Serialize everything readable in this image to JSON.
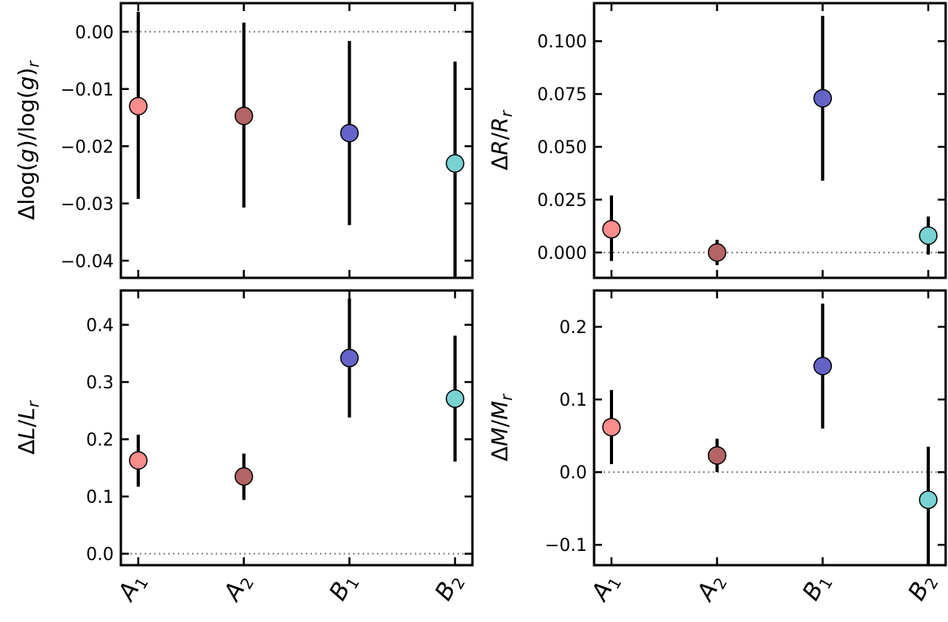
{
  "chart_data": {
    "type": "scatter",
    "categories": [
      {
        "main": "A",
        "sub": "1"
      },
      {
        "main": "A",
        "sub": "2"
      },
      {
        "main": "B",
        "sub": "1"
      },
      {
        "main": "B",
        "sub": "2"
      }
    ],
    "colors": [
      "#fa8c8c",
      "#b46464",
      "#6464c8",
      "#78d2d2"
    ],
    "reference_line": 0,
    "panels": [
      {
        "id": "logg",
        "ylabel": {
          "prefix": "Δlog(",
          "var": "g",
          "mid": ")/log(",
          "var2": "g",
          "end": ")",
          "sub": "r"
        },
        "yrange": [
          -0.043,
          0.005
        ],
        "ticks": [
          0.0,
          -0.01,
          -0.02,
          -0.03,
          -0.04
        ],
        "tick_labels": [
          "0.00",
          "−0.01",
          "−0.02",
          "−0.03",
          "−0.04"
        ],
        "values": [
          -0.013,
          -0.0147,
          -0.0177,
          -0.023
        ],
        "err_low": [
          -0.0292,
          -0.0307,
          -0.0338,
          -0.043
        ],
        "err_high": [
          0.0035,
          0.0016,
          -0.0016,
          -0.0052
        ]
      },
      {
        "id": "radius",
        "ylabel": {
          "prefix": "Δ",
          "var": "R",
          "mid": "/",
          "var2": "R",
          "end": "",
          "sub": "r"
        },
        "yrange": [
          -0.012,
          0.118
        ],
        "ticks": [
          0.0,
          0.025,
          0.05,
          0.075,
          0.1
        ],
        "tick_labels": [
          "0.000",
          "0.025",
          "0.050",
          "0.075",
          "0.100"
        ],
        "values": [
          0.011,
          0.0,
          0.073,
          0.008
        ],
        "err_low": [
          -0.004,
          -0.006,
          0.034,
          -0.001
        ],
        "err_high": [
          0.027,
          0.006,
          0.112,
          0.017
        ]
      },
      {
        "id": "luminosity",
        "ylabel": {
          "prefix": "Δ",
          "var": "L",
          "mid": "/",
          "var2": "L",
          "end": "",
          "sub": "r"
        },
        "yrange": [
          -0.02,
          0.46
        ],
        "ticks": [
          0.0,
          0.1,
          0.2,
          0.3,
          0.4
        ],
        "tick_labels": [
          "0.0",
          "0.1",
          "0.2",
          "0.3",
          "0.4"
        ],
        "values": [
          0.163,
          0.135,
          0.342,
          0.271
        ],
        "err_low": [
          0.117,
          0.094,
          0.238,
          0.161
        ],
        "err_high": [
          0.208,
          0.175,
          0.446,
          0.381
        ]
      },
      {
        "id": "mass",
        "ylabel": {
          "prefix": "Δ",
          "var": "M",
          "mid": "/",
          "var2": "M",
          "end": "",
          "sub": "r"
        },
        "yrange": [
          -0.128,
          0.25
        ],
        "ticks": [
          -0.1,
          0.0,
          0.1,
          0.2
        ],
        "tick_labels": [
          "−0.1",
          "0.0",
          "0.1",
          "0.2"
        ],
        "values": [
          0.062,
          0.023,
          0.146,
          -0.038
        ],
        "err_low": [
          0.011,
          0.0,
          0.06,
          -0.128
        ],
        "err_high": [
          0.113,
          0.046,
          0.232,
          0.035
        ]
      }
    ]
  }
}
